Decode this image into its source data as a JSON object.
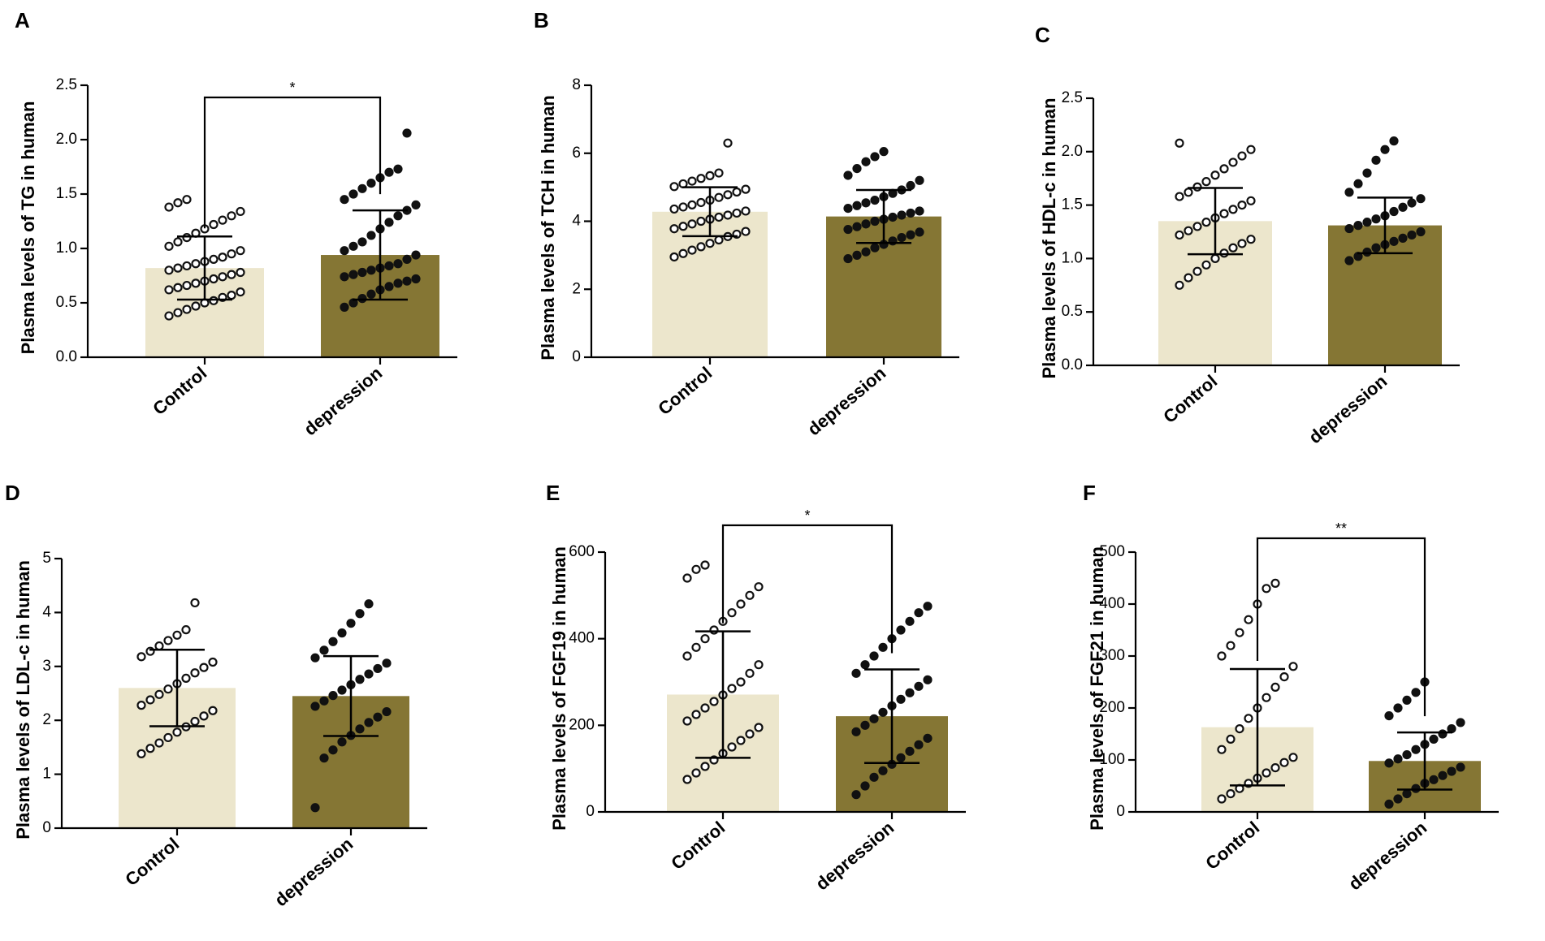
{
  "figure": {
    "colors": {
      "control": "#ece6cc",
      "depression": "#857634",
      "ink": "#000000"
    }
  },
  "chart_data": [
    {
      "panel": "A",
      "type": "bar",
      "title": "",
      "xlabel": "",
      "ylabel": "Plasma levels of TG in human",
      "ylim": [
        0,
        2.5
      ],
      "yticks": [
        0.0,
        0.5,
        1.0,
        1.5,
        2.0,
        2.5
      ],
      "ytick_labels": [
        "0.0",
        "0.5",
        "1.0",
        "1.5",
        "2.0",
        "2.5"
      ],
      "categories": [
        "Control",
        "depression"
      ],
      "values": [
        0.82,
        0.94
      ],
      "sd": [
        0.29,
        0.41
      ],
      "significance": "*",
      "points": [
        [
          0.38,
          0.41,
          0.44,
          0.47,
          0.5,
          0.52,
          0.55,
          0.57,
          0.6,
          0.62,
          0.64,
          0.66,
          0.68,
          0.7,
          0.72,
          0.74,
          0.76,
          0.78,
          0.8,
          0.82,
          0.84,
          0.86,
          0.88,
          0.9,
          0.92,
          0.95,
          0.98,
          1.02,
          1.06,
          1.1,
          1.14,
          1.18,
          1.22,
          1.26,
          1.3,
          1.34,
          1.38,
          1.42,
          1.45
        ],
        [
          0.46,
          0.5,
          0.54,
          0.58,
          0.62,
          0.65,
          0.68,
          0.7,
          0.72,
          0.74,
          0.76,
          0.78,
          0.8,
          0.82,
          0.84,
          0.86,
          0.9,
          0.94,
          0.98,
          1.02,
          1.06,
          1.12,
          1.18,
          1.24,
          1.3,
          1.35,
          1.4,
          1.45,
          1.5,
          1.55,
          1.6,
          1.65,
          1.7,
          1.73,
          2.06
        ]
      ]
    },
    {
      "panel": "B",
      "type": "bar",
      "title": "",
      "xlabel": "",
      "ylabel": "Plasma levels of TCH in human",
      "ylim": [
        0,
        8
      ],
      "yticks": [
        0,
        2,
        4,
        6,
        8
      ],
      "ytick_labels": [
        "0",
        "2",
        "4",
        "6",
        "8"
      ],
      "categories": [
        "Control",
        "depression"
      ],
      "values": [
        4.28,
        4.14
      ],
      "sd": [
        0.72,
        0.78
      ],
      "significance": "",
      "points": [
        [
          2.95,
          3.05,
          3.15,
          3.25,
          3.35,
          3.45,
          3.55,
          3.62,
          3.7,
          3.78,
          3.85,
          3.92,
          4.0,
          4.06,
          4.12,
          4.18,
          4.24,
          4.3,
          4.36,
          4.42,
          4.48,
          4.55,
          4.62,
          4.7,
          4.78,
          4.86,
          4.94,
          5.02,
          5.1,
          5.18,
          5.26,
          5.34,
          5.42,
          6.3
        ],
        [
          2.9,
          3.0,
          3.1,
          3.22,
          3.32,
          3.42,
          3.52,
          3.6,
          3.68,
          3.76,
          3.84,
          3.92,
          4.0,
          4.06,
          4.12,
          4.18,
          4.24,
          4.3,
          4.38,
          4.46,
          4.54,
          4.62,
          4.72,
          4.82,
          4.92,
          5.05,
          5.2,
          5.35,
          5.55,
          5.75,
          5.9,
          6.05
        ]
      ]
    },
    {
      "panel": "C",
      "type": "bar",
      "title": "",
      "xlabel": "",
      "ylabel": "Plasma levels of HDL-c in human",
      "ylim": [
        0,
        2.5
      ],
      "yticks": [
        0.0,
        0.5,
        1.0,
        1.5,
        2.0,
        2.5
      ],
      "ytick_labels": [
        "0.0",
        "0.5",
        "1.0",
        "1.5",
        "2.0",
        "2.5"
      ],
      "categories": [
        "Control",
        "depression"
      ],
      "values": [
        1.35,
        1.31
      ],
      "sd": [
        0.31,
        0.26
      ],
      "significance": "",
      "points": [
        [
          0.75,
          0.82,
          0.88,
          0.94,
          1.0,
          1.05,
          1.1,
          1.14,
          1.18,
          1.22,
          1.26,
          1.3,
          1.34,
          1.38,
          1.42,
          1.46,
          1.5,
          1.54,
          1.58,
          1.62,
          1.67,
          1.72,
          1.78,
          1.84,
          1.9,
          1.96,
          2.02,
          2.08
        ],
        [
          0.98,
          1.02,
          1.06,
          1.1,
          1.13,
          1.16,
          1.19,
          1.22,
          1.25,
          1.28,
          1.31,
          1.34,
          1.37,
          1.4,
          1.44,
          1.48,
          1.52,
          1.56,
          1.62,
          1.7,
          1.8,
          1.92,
          2.02,
          2.1
        ]
      ]
    },
    {
      "panel": "D",
      "type": "bar",
      "title": "",
      "xlabel": "",
      "ylabel": "Plasma levels of LDL-c in human",
      "ylim": [
        0,
        5
      ],
      "yticks": [
        0,
        1,
        2,
        3,
        4,
        5
      ],
      "ytick_labels": [
        "0",
        "1",
        "2",
        "3",
        "4",
        "5"
      ],
      "categories": [
        "Control",
        "depression"
      ],
      "values": [
        2.6,
        2.45
      ],
      "sd": [
        0.71,
        0.74
      ],
      "significance": "",
      "points": [
        [
          1.38,
          1.48,
          1.58,
          1.68,
          1.78,
          1.88,
          1.98,
          2.08,
          2.18,
          2.28,
          2.38,
          2.48,
          2.58,
          2.68,
          2.78,
          2.88,
          2.98,
          3.08,
          3.18,
          3.28,
          3.38,
          3.48,
          3.58,
          3.68,
          4.18
        ],
        [
          0.38,
          1.3,
          1.45,
          1.6,
          1.72,
          1.84,
          1.96,
          2.06,
          2.16,
          2.26,
          2.36,
          2.46,
          2.56,
          2.66,
          2.76,
          2.86,
          2.96,
          3.06,
          3.16,
          3.3,
          3.46,
          3.62,
          3.8,
          3.98,
          4.16
        ]
      ]
    },
    {
      "panel": "E",
      "type": "bar",
      "title": "",
      "xlabel": "",
      "ylabel": "Plasma levels of FGF19 in human",
      "ylim": [
        0,
        600
      ],
      "yticks": [
        0,
        200,
        400,
        600
      ],
      "ytick_labels": [
        "0",
        "200",
        "400",
        "600"
      ],
      "categories": [
        "Control",
        "depression"
      ],
      "values": [
        271,
        221
      ],
      "sd": [
        146,
        108
      ],
      "significance": "*",
      "points": [
        [
          75,
          90,
          105,
          120,
          135,
          150,
          165,
          180,
          195,
          210,
          225,
          240,
          255,
          270,
          285,
          300,
          320,
          340,
          360,
          380,
          400,
          420,
          440,
          460,
          480,
          500,
          520,
          540,
          560,
          570
        ],
        [
          40,
          60,
          80,
          95,
          110,
          125,
          140,
          155,
          170,
          185,
          200,
          215,
          230,
          245,
          260,
          275,
          290,
          305,
          320,
          340,
          360,
          380,
          400,
          420,
          440,
          460,
          475
        ]
      ]
    },
    {
      "panel": "F",
      "type": "bar",
      "title": "",
      "xlabel": "",
      "ylabel": "Plasma levels of FGF21 in human",
      "ylim": [
        0,
        500
      ],
      "yticks": [
        0,
        100,
        200,
        300,
        400,
        500
      ],
      "ytick_labels": [
        "0",
        "100",
        "200",
        "300",
        "400",
        "500"
      ],
      "categories": [
        "Control",
        "depression"
      ],
      "values": [
        163,
        98
      ],
      "sd": [
        112,
        55
      ],
      "significance": "**",
      "points": [
        [
          25,
          35,
          45,
          55,
          65,
          75,
          85,
          95,
          105,
          120,
          140,
          160,
          180,
          200,
          220,
          240,
          260,
          280,
          300,
          320,
          345,
          370,
          400,
          430,
          440
        ],
        [
          15,
          25,
          35,
          45,
          55,
          62,
          70,
          78,
          86,
          94,
          102,
          110,
          120,
          130,
          140,
          150,
          160,
          172,
          185,
          200,
          215,
          230,
          250
        ]
      ]
    }
  ]
}
